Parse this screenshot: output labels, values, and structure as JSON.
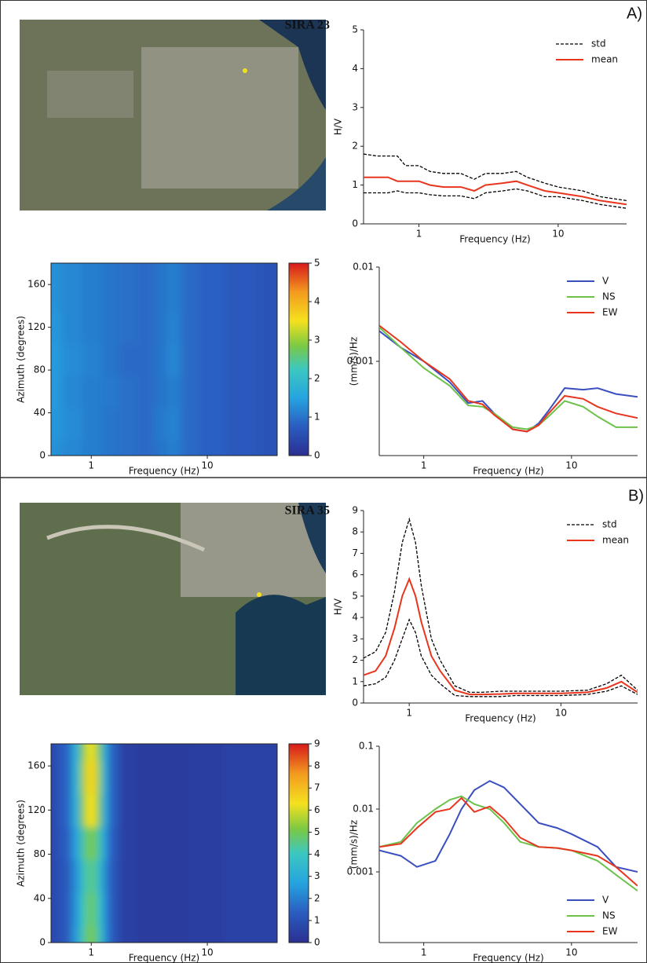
{
  "panel_labels": [
    "A)",
    "B)"
  ],
  "station_titles": [
    "SIRA 23",
    "SIRA 35"
  ],
  "chart_data": [
    {
      "type": "line",
      "xlabel": "Frequency (Hz)",
      "ylabel": "H/V",
      "xscale": "log",
      "legend": "upper right",
      "xlim": [
        0.4,
        31
      ],
      "xticks": [
        1,
        10
      ],
      "ylim": [
        0,
        5
      ],
      "yticks": [
        0,
        1,
        2,
        3,
        4,
        5
      ],
      "x": [
        0.4,
        0.5,
        0.6,
        0.7,
        0.8,
        1,
        1.2,
        1.5,
        2,
        2.5,
        3,
        4,
        5,
        6,
        8,
        10,
        15,
        20,
        31
      ],
      "series": [
        {
          "name": "std",
          "color": "#000000",
          "dash": true,
          "values": [
            1.8,
            1.75,
            1.75,
            1.75,
            1.5,
            1.5,
            1.35,
            1.3,
            1.3,
            1.15,
            1.3,
            1.3,
            1.35,
            1.2,
            1.05,
            0.95,
            0.85,
            0.7,
            0.6
          ]
        },
        {
          "color": "#000000",
          "dash": true,
          "values": [
            0.8,
            0.8,
            0.8,
            0.85,
            0.8,
            0.8,
            0.75,
            0.72,
            0.72,
            0.65,
            0.8,
            0.85,
            0.9,
            0.85,
            0.7,
            0.7,
            0.6,
            0.5,
            0.4
          ]
        },
        {
          "name": "mean",
          "color": "#e8361e",
          "dash": false,
          "values": [
            1.2,
            1.2,
            1.2,
            1.1,
            1.1,
            1.1,
            1.0,
            0.95,
            0.95,
            0.85,
            1.0,
            1.05,
            1.1,
            1.0,
            0.85,
            0.8,
            0.7,
            0.6,
            0.5
          ]
        }
      ]
    },
    {
      "type": "heatmap",
      "xlabel": "Frequency (Hz)",
      "ylabel": "Azimuth (degrees)",
      "xscale": "log",
      "xlim": [
        0.45,
        40
      ],
      "xticks": [
        1,
        10
      ],
      "ylim": [
        0,
        180
      ],
      "yticks": [
        0,
        40,
        80,
        120,
        160
      ],
      "clim": [
        0,
        5
      ],
      "cticks": [
        0,
        1,
        2,
        3,
        4,
        5
      ],
      "x": [
        0.45,
        0.7,
        1,
        1.5,
        2,
        3,
        4,
        5,
        7,
        10,
        20,
        40
      ],
      "y": [
        0,
        30,
        60,
        90,
        120,
        150,
        180
      ],
      "z": [
        [
          1.3,
          1.2,
          1.1,
          1.0,
          0.95,
          0.9,
          1.0,
          1.1,
          0.9,
          0.8,
          0.7,
          0.6
        ],
        [
          1.35,
          1.25,
          1.1,
          1.0,
          0.95,
          0.9,
          1.05,
          1.15,
          0.9,
          0.8,
          0.7,
          0.6
        ],
        [
          1.4,
          1.2,
          1.1,
          1.05,
          0.95,
          0.9,
          1.0,
          1.1,
          0.9,
          0.8,
          0.7,
          0.6
        ],
        [
          1.4,
          1.25,
          1.15,
          1.0,
          0.9,
          0.9,
          1.0,
          1.2,
          0.9,
          0.8,
          0.7,
          0.6
        ],
        [
          1.35,
          1.2,
          1.1,
          1.0,
          0.95,
          0.9,
          1.0,
          1.15,
          0.9,
          0.8,
          0.7,
          0.6
        ],
        [
          1.3,
          1.2,
          1.1,
          1.0,
          0.95,
          0.9,
          1.0,
          1.1,
          0.9,
          0.8,
          0.7,
          0.6
        ],
        [
          1.3,
          1.2,
          1.1,
          1.0,
          0.95,
          0.9,
          1.0,
          1.1,
          0.9,
          0.8,
          0.7,
          0.6
        ]
      ]
    },
    {
      "type": "line",
      "xlabel": "Frequency (Hz)",
      "ylabel": "(mm/s)/Hz",
      "xscale": "log",
      "yscale": "log",
      "legend": "upper right",
      "xlim": [
        0.5,
        28
      ],
      "xticks": [
        1,
        10
      ],
      "ylim": [
        0.0001,
        0.01
      ],
      "yticks": [
        0.001,
        0.01
      ],
      "x": [
        0.5,
        0.7,
        1,
        1.5,
        2,
        2.5,
        3,
        4,
        5,
        6,
        7,
        9,
        12,
        15,
        20,
        28
      ],
      "series": [
        {
          "name": "V",
          "color": "#3a4fbf",
          "values": [
            0.0021,
            0.0014,
            0.001,
            0.0006,
            0.00036,
            0.00038,
            0.00028,
            0.00019,
            0.00018,
            0.00022,
            0.0003,
            0.00052,
            0.0005,
            0.00052,
            0.00045,
            0.00042
          ]
        },
        {
          "name": "NS",
          "color": "#6cc24a",
          "values": [
            0.0023,
            0.0014,
            0.00085,
            0.00055,
            0.00034,
            0.00033,
            0.00028,
            0.0002,
            0.00019,
            0.00021,
            0.00026,
            0.00038,
            0.00033,
            0.00026,
            0.0002,
            0.0002
          ]
        },
        {
          "name": "EW",
          "color": "#e8361e",
          "values": [
            0.0024,
            0.0016,
            0.001,
            0.00065,
            0.00038,
            0.00035,
            0.00027,
            0.00019,
            0.00018,
            0.00021,
            0.00028,
            0.00043,
            0.0004,
            0.00033,
            0.00028,
            0.00025
          ]
        }
      ]
    },
    {
      "type": "line",
      "xlabel": "Frequency (Hz)",
      "ylabel": "H/V",
      "xscale": "log",
      "legend": "upper right",
      "xlim": [
        0.5,
        32
      ],
      "xticks": [
        1,
        10
      ],
      "ylim": [
        0,
        9
      ],
      "yticks": [
        0,
        1,
        2,
        3,
        4,
        5,
        6,
        7,
        8,
        9
      ],
      "x": [
        0.5,
        0.6,
        0.7,
        0.8,
        0.9,
        1,
        1.1,
        1.2,
        1.4,
        1.6,
        2,
        2.5,
        3,
        4,
        5,
        7,
        10,
        15,
        20,
        25,
        32
      ],
      "series": [
        {
          "name": "std",
          "color": "#000000",
          "dash": true,
          "values": [
            2.1,
            2.4,
            3.3,
            5.2,
            7.5,
            8.6,
            7.5,
            5.5,
            3.0,
            2.0,
            0.8,
            0.5,
            0.5,
            0.55,
            0.55,
            0.55,
            0.55,
            0.6,
            0.9,
            1.3,
            0.6
          ]
        },
        {
          "color": "#000000",
          "dash": true,
          "values": [
            0.8,
            0.9,
            1.2,
            2.0,
            3.0,
            3.9,
            3.3,
            2.2,
            1.3,
            0.9,
            0.35,
            0.3,
            0.3,
            0.3,
            0.35,
            0.35,
            0.35,
            0.4,
            0.55,
            0.8,
            0.4
          ]
        },
        {
          "name": "mean",
          "color": "#e8361e",
          "dash": false,
          "values": [
            1.3,
            1.5,
            2.2,
            3.5,
            5.0,
            5.8,
            5.0,
            3.8,
            2.2,
            1.5,
            0.6,
            0.4,
            0.4,
            0.42,
            0.45,
            0.45,
            0.45,
            0.5,
            0.7,
            1.0,
            0.5
          ]
        }
      ]
    },
    {
      "type": "heatmap",
      "xlabel": "Frequency (Hz)",
      "ylabel": "Azimuth (degrees)",
      "xscale": "log",
      "xlim": [
        0.45,
        40
      ],
      "xticks": [
        1,
        10
      ],
      "ylim": [
        0,
        180
      ],
      "yticks": [
        0,
        40,
        80,
        120,
        160
      ],
      "clim": [
        0,
        9
      ],
      "cticks": [
        0,
        1,
        2,
        3,
        4,
        5,
        6,
        7,
        8,
        9
      ],
      "x": [
        0.45,
        0.6,
        0.75,
        0.85,
        0.95,
        1.05,
        1.15,
        1.3,
        1.5,
        2,
        3,
        5,
        10,
        20,
        40
      ],
      "y": [
        0,
        30,
        60,
        90,
        120,
        150,
        180
      ],
      "z": [
        [
          0.8,
          1.2,
          2.5,
          4.2,
          5.0,
          5.0,
          4.2,
          2.5,
          1.2,
          0.5,
          0.4,
          0.4,
          0.45,
          0.6,
          0.6
        ],
        [
          0.8,
          1.2,
          2.4,
          4.0,
          4.8,
          4.8,
          4.0,
          2.4,
          1.2,
          0.5,
          0.4,
          0.4,
          0.45,
          0.6,
          0.6
        ],
        [
          0.8,
          1.2,
          2.3,
          3.8,
          4.5,
          4.5,
          3.8,
          2.3,
          1.2,
          0.5,
          0.4,
          0.4,
          0.45,
          0.6,
          0.6
        ],
        [
          0.8,
          1.3,
          2.6,
          4.3,
          5.0,
          5.0,
          4.3,
          2.6,
          1.3,
          0.5,
          0.4,
          0.4,
          0.45,
          0.6,
          0.6
        ],
        [
          0.8,
          1.4,
          3.0,
          5.2,
          6.3,
          6.3,
          5.2,
          3.0,
          1.4,
          0.5,
          0.4,
          0.4,
          0.45,
          0.6,
          0.6
        ],
        [
          0.8,
          1.4,
          3.1,
          5.4,
          6.5,
          6.5,
          5.4,
          3.1,
          1.4,
          0.5,
          0.4,
          0.4,
          0.45,
          0.6,
          0.6
        ],
        [
          0.8,
          1.4,
          3.0,
          5.1,
          6.2,
          6.2,
          5.1,
          3.0,
          1.4,
          0.5,
          0.4,
          0.4,
          0.45,
          0.6,
          0.6
        ]
      ]
    },
    {
      "type": "line",
      "xlabel": "Frequency (Hz)",
      "ylabel": "(mm/s)/Hz",
      "xscale": "log",
      "yscale": "log",
      "legend": "lower right",
      "xlim": [
        0.5,
        28
      ],
      "xticks": [
        1,
        10
      ],
      "ylim": [
        7.5e-05,
        0.1
      ],
      "yticks": [
        0.001,
        0.01,
        0.1
      ],
      "x": [
        0.5,
        0.7,
        0.9,
        1.2,
        1.5,
        1.8,
        2.2,
        2.8,
        3.5,
        4.5,
        6,
        8,
        10,
        15,
        20,
        28
      ],
      "series": [
        {
          "name": "V",
          "color": "#3a4fbf",
          "values": [
            0.0022,
            0.0018,
            0.0012,
            0.0015,
            0.004,
            0.01,
            0.02,
            0.028,
            0.022,
            0.012,
            0.006,
            0.005,
            0.004,
            0.0025,
            0.0012,
            0.001
          ]
        },
        {
          "name": "NS",
          "color": "#6cc24a",
          "values": [
            0.0025,
            0.003,
            0.006,
            0.01,
            0.014,
            0.016,
            0.012,
            0.01,
            0.006,
            0.003,
            0.0025,
            0.0024,
            0.0022,
            0.0015,
            0.0009,
            0.0005
          ]
        },
        {
          "name": "EW",
          "color": "#e8361e",
          "values": [
            0.0025,
            0.0028,
            0.005,
            0.009,
            0.01,
            0.015,
            0.009,
            0.011,
            0.007,
            0.0035,
            0.0025,
            0.0024,
            0.0022,
            0.0018,
            0.0012,
            0.0006
          ]
        }
      ]
    }
  ]
}
